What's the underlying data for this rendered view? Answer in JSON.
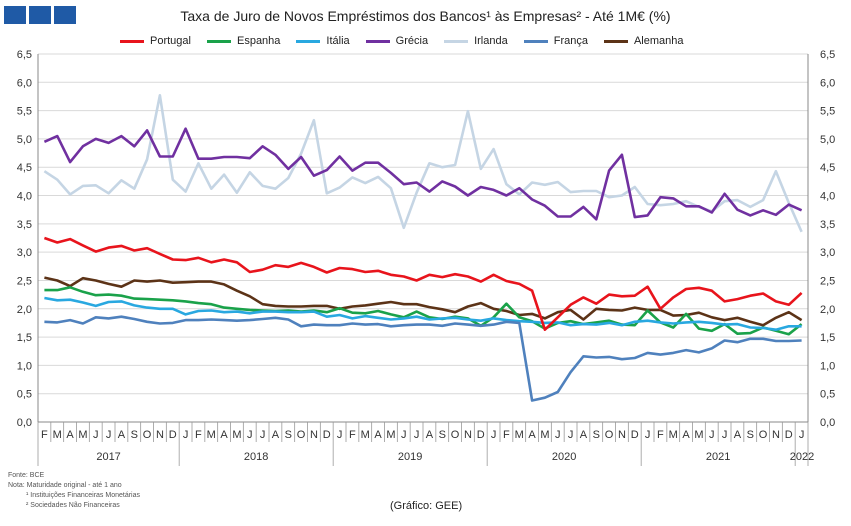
{
  "header": {
    "title": "Taxa de Juro de Novos Empréstimos dos Bancos¹ às Empresas² - Até 1M€ (%)"
  },
  "notes": {
    "fonte": "Fonte: BCE",
    "nota": "Nota: Maturidade original - até 1 ano",
    "n1": "¹ Instituições Financeiras Monetárias",
    "n2": "² Sociedades Não Financeiras"
  },
  "source": "(Gráfico: GEE)",
  "chart_data": {
    "type": "line",
    "title": "Taxa de Juro de Novos Empréstimos dos Bancos¹ às Empresas² - Até 1M€ (%)",
    "ylim": [
      0,
      6.5
    ],
    "y_ticks": [
      "0,0",
      "0,5",
      "1,0",
      "1,5",
      "2,0",
      "2,5",
      "3,0",
      "3,5",
      "4,0",
      "4,5",
      "5,0",
      "5,5",
      "6,0",
      "6,5"
    ],
    "grid": true,
    "legend_position": "top",
    "months": [
      "F",
      "M",
      "A",
      "M",
      "J",
      "J",
      "A",
      "S",
      "O",
      "N",
      "D",
      "J",
      "F",
      "M",
      "A",
      "M",
      "J",
      "J",
      "A",
      "S",
      "O",
      "N",
      "D",
      "J",
      "F",
      "M",
      "A",
      "M",
      "J",
      "J",
      "A",
      "S",
      "O",
      "N",
      "D",
      "J",
      "F",
      "M",
      "A",
      "M",
      "J",
      "J",
      "A",
      "S",
      "O",
      "N",
      "D",
      "J",
      "F",
      "M",
      "A",
      "M",
      "J",
      "J",
      "A",
      "S",
      "O",
      "N",
      "D",
      "J"
    ],
    "years": [
      {
        "label": "2017",
        "start": 0,
        "end": 10
      },
      {
        "label": "2018",
        "start": 11,
        "end": 22
      },
      {
        "label": "2019",
        "start": 23,
        "end": 34
      },
      {
        "label": "2020",
        "start": 35,
        "end": 46
      },
      {
        "label": "2021",
        "start": 47,
        "end": 58
      },
      {
        "label": "2022",
        "start": 59,
        "end": 59
      }
    ],
    "series": [
      {
        "name": "Portugal",
        "color": "#e8141c",
        "values": [
          3.25,
          3.17,
          3.23,
          3.12,
          3.01,
          3.08,
          3.11,
          3.03,
          3.07,
          2.97,
          2.87,
          2.86,
          2.9,
          2.82,
          2.87,
          2.82,
          2.65,
          2.69,
          2.77,
          2.74,
          2.81,
          2.74,
          2.64,
          2.72,
          2.7,
          2.65,
          2.67,
          2.6,
          2.57,
          2.5,
          2.6,
          2.56,
          2.61,
          2.57,
          2.48,
          2.6,
          2.49,
          2.44,
          2.32,
          1.63,
          1.85,
          2.07,
          2.2,
          2.09,
          2.25,
          2.22,
          2.23,
          2.39,
          2.0,
          2.2,
          2.35,
          2.37,
          2.32,
          2.13,
          2.17,
          2.23,
          2.27,
          2.13,
          2.07,
          2.28
        ]
      },
      {
        "name": "Espanha",
        "color": "#1aa24a",
        "values": [
          2.33,
          2.33,
          2.38,
          2.3,
          2.24,
          2.25,
          2.23,
          2.18,
          2.17,
          2.16,
          2.15,
          2.13,
          2.1,
          2.08,
          2.02,
          2.0,
          1.98,
          1.97,
          1.96,
          1.97,
          1.95,
          1.97,
          1.94,
          2.01,
          1.93,
          1.92,
          1.96,
          1.9,
          1.85,
          1.95,
          1.85,
          1.82,
          1.86,
          1.83,
          1.7,
          1.85,
          2.09,
          1.85,
          1.78,
          1.65,
          1.75,
          1.78,
          1.73,
          1.76,
          1.79,
          1.72,
          1.71,
          1.97,
          1.76,
          1.67,
          1.91,
          1.65,
          1.61,
          1.73,
          1.56,
          1.57,
          1.67,
          1.61,
          1.55,
          1.73
        ]
      },
      {
        "name": "Itália",
        "color": "#29a8e0",
        "values": [
          2.19,
          2.15,
          2.16,
          2.11,
          2.05,
          2.12,
          2.13,
          2.06,
          2.02,
          2.0,
          2.0,
          1.9,
          1.96,
          1.97,
          1.94,
          1.95,
          1.92,
          1.95,
          1.95,
          1.94,
          1.94,
          1.95,
          1.86,
          1.89,
          1.83,
          1.87,
          1.84,
          1.81,
          1.83,
          1.86,
          1.81,
          1.83,
          1.84,
          1.81,
          1.79,
          1.83,
          1.8,
          1.78,
          1.77,
          1.75,
          1.76,
          1.71,
          1.73,
          1.72,
          1.75,
          1.71,
          1.77,
          1.79,
          1.76,
          1.74,
          1.76,
          1.77,
          1.75,
          1.72,
          1.73,
          1.67,
          1.66,
          1.63,
          1.69,
          1.69
        ]
      },
      {
        "name": "Grécia",
        "color": "#7030a0",
        "values": [
          4.95,
          5.05,
          4.59,
          4.87,
          5.0,
          4.93,
          5.05,
          4.87,
          5.15,
          4.69,
          4.69,
          5.18,
          4.65,
          4.65,
          4.68,
          4.68,
          4.66,
          4.87,
          4.72,
          4.47,
          4.68,
          4.35,
          4.45,
          4.69,
          4.44,
          4.58,
          4.58,
          4.4,
          4.2,
          4.23,
          4.07,
          4.25,
          4.16,
          4.0,
          4.15,
          4.1,
          4.0,
          4.13,
          3.93,
          3.82,
          3.63,
          3.63,
          3.8,
          3.58,
          4.44,
          4.72,
          3.62,
          3.65,
          3.97,
          3.95,
          3.81,
          3.81,
          3.7,
          4.03,
          3.75,
          3.65,
          3.74,
          3.66,
          3.84,
          3.74
        ]
      },
      {
        "name": "Irlanda",
        "color": "#c5d5e4",
        "values": [
          4.43,
          4.28,
          4.02,
          4.17,
          4.18,
          4.04,
          4.27,
          4.12,
          4.64,
          5.77,
          4.28,
          4.07,
          4.57,
          4.12,
          4.37,
          4.05,
          4.41,
          4.17,
          4.12,
          4.31,
          4.74,
          5.33,
          4.04,
          4.14,
          4.32,
          4.22,
          4.33,
          4.13,
          3.43,
          4.05,
          4.57,
          4.5,
          4.54,
          5.49,
          4.47,
          4.82,
          4.2,
          4.02,
          4.23,
          4.19,
          4.24,
          4.06,
          4.08,
          4.08,
          3.97,
          4.0,
          4.15,
          3.85,
          3.83,
          3.85,
          3.9,
          3.8,
          3.72,
          3.9,
          3.92,
          3.8,
          3.92,
          4.43,
          3.87,
          3.36
        ]
      },
      {
        "name": "França",
        "color": "#4f81bd",
        "values": [
          1.77,
          1.76,
          1.8,
          1.74,
          1.85,
          1.83,
          1.86,
          1.82,
          1.77,
          1.74,
          1.75,
          1.8,
          1.8,
          1.81,
          1.8,
          1.79,
          1.8,
          1.82,
          1.84,
          1.81,
          1.69,
          1.72,
          1.71,
          1.71,
          1.74,
          1.72,
          1.73,
          1.69,
          1.71,
          1.72,
          1.72,
          1.7,
          1.74,
          1.72,
          1.7,
          1.72,
          1.77,
          1.75,
          0.38,
          0.43,
          0.53,
          0.88,
          1.16,
          1.14,
          1.15,
          1.11,
          1.13,
          1.22,
          1.19,
          1.22,
          1.27,
          1.23,
          1.3,
          1.44,
          1.41,
          1.47,
          1.47,
          1.43,
          1.43,
          1.44
        ]
      },
      {
        "name": "Alemanha",
        "color": "#5c3317",
        "values": [
          2.55,
          2.5,
          2.4,
          2.54,
          2.5,
          2.44,
          2.39,
          2.5,
          2.48,
          2.5,
          2.46,
          2.47,
          2.48,
          2.48,
          2.43,
          2.32,
          2.22,
          2.08,
          2.05,
          2.04,
          2.04,
          2.05,
          2.05,
          2.0,
          2.04,
          2.06,
          2.09,
          2.12,
          2.08,
          2.08,
          2.03,
          1.99,
          1.94,
          2.04,
          2.1,
          2.0,
          1.96,
          1.89,
          1.91,
          1.83,
          1.94,
          1.98,
          1.81,
          2.0,
          1.98,
          1.97,
          2.02,
          1.98,
          1.98,
          1.88,
          1.89,
          1.93,
          1.85,
          1.8,
          1.84,
          1.77,
          1.71,
          1.84,
          1.94,
          1.8
        ]
      }
    ]
  }
}
